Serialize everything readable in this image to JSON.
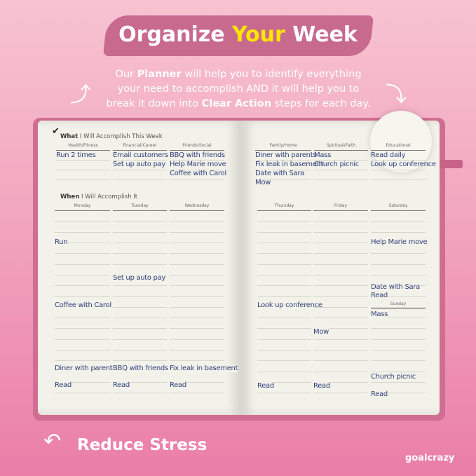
{
  "header": {
    "title_a": "Organize ",
    "title_b": "Your",
    "title_c": " Week",
    "sub_1": "Our ",
    "sub_planner": "Planner",
    "sub_2": " will help you to identify everything your need to accomplish AND it will help you to break it down into ",
    "sub_clear": "Clear Action",
    "sub_3": " steps for each day."
  },
  "planner": {
    "what_bold": "What",
    "what_rest": " I Will Accomplish This Week",
    "when_bold": "When",
    "when_rest": " I Will Accomplish It",
    "categories": [
      {
        "label": "Health/Fitness",
        "items": [
          "Run 2 times"
        ]
      },
      {
        "label": "Financial/Career",
        "items": [
          "Email customers",
          "Set up auto pay"
        ]
      },
      {
        "label": "Friends/Social",
        "items": [
          "BBQ with friends",
          "Help Marie move",
          "Coffee with Carol"
        ]
      },
      {
        "label": "Family/Home",
        "items": [
          "Diner with parents",
          "Fix leak in basement",
          "Date with Sara",
          "Mow"
        ]
      },
      {
        "label": "Spiritual/Faith",
        "items": [
          "Mass",
          "Church picnic"
        ]
      },
      {
        "label": "Educational",
        "items": [
          "Read daily",
          "Look up conference"
        ]
      }
    ],
    "days": [
      {
        "label": "Monday",
        "entries": [
          "Run",
          "Coffee with Carol",
          "Diner with parents",
          "Read"
        ]
      },
      {
        "label": "Tuesday",
        "entries": [
          "Set up auto pay",
          "BBQ with friends",
          "Read"
        ]
      },
      {
        "label": "Wednesday",
        "entries": [
          "Fix leak in basement",
          "Read"
        ]
      },
      {
        "label": "Thursday",
        "entries": [
          "Look up conference",
          "Read"
        ]
      },
      {
        "label": "Friday",
        "entries": [
          "Mow",
          "Read"
        ]
      },
      {
        "label": "Saturday",
        "entries": [
          "Help Marie move",
          "Date with Sara",
          "Read"
        ]
      },
      {
        "label": "Sunday",
        "entries": [
          "Mass",
          "Church picnic",
          "Read"
        ]
      }
    ]
  },
  "footer": {
    "tagline": "Reduce Stress",
    "logo": "goalcrazy"
  },
  "colors": {
    "banner": "#c86a8e",
    "accent": "#ffe600",
    "ink": "#2e3f7a",
    "cover": "#cf6d92"
  }
}
